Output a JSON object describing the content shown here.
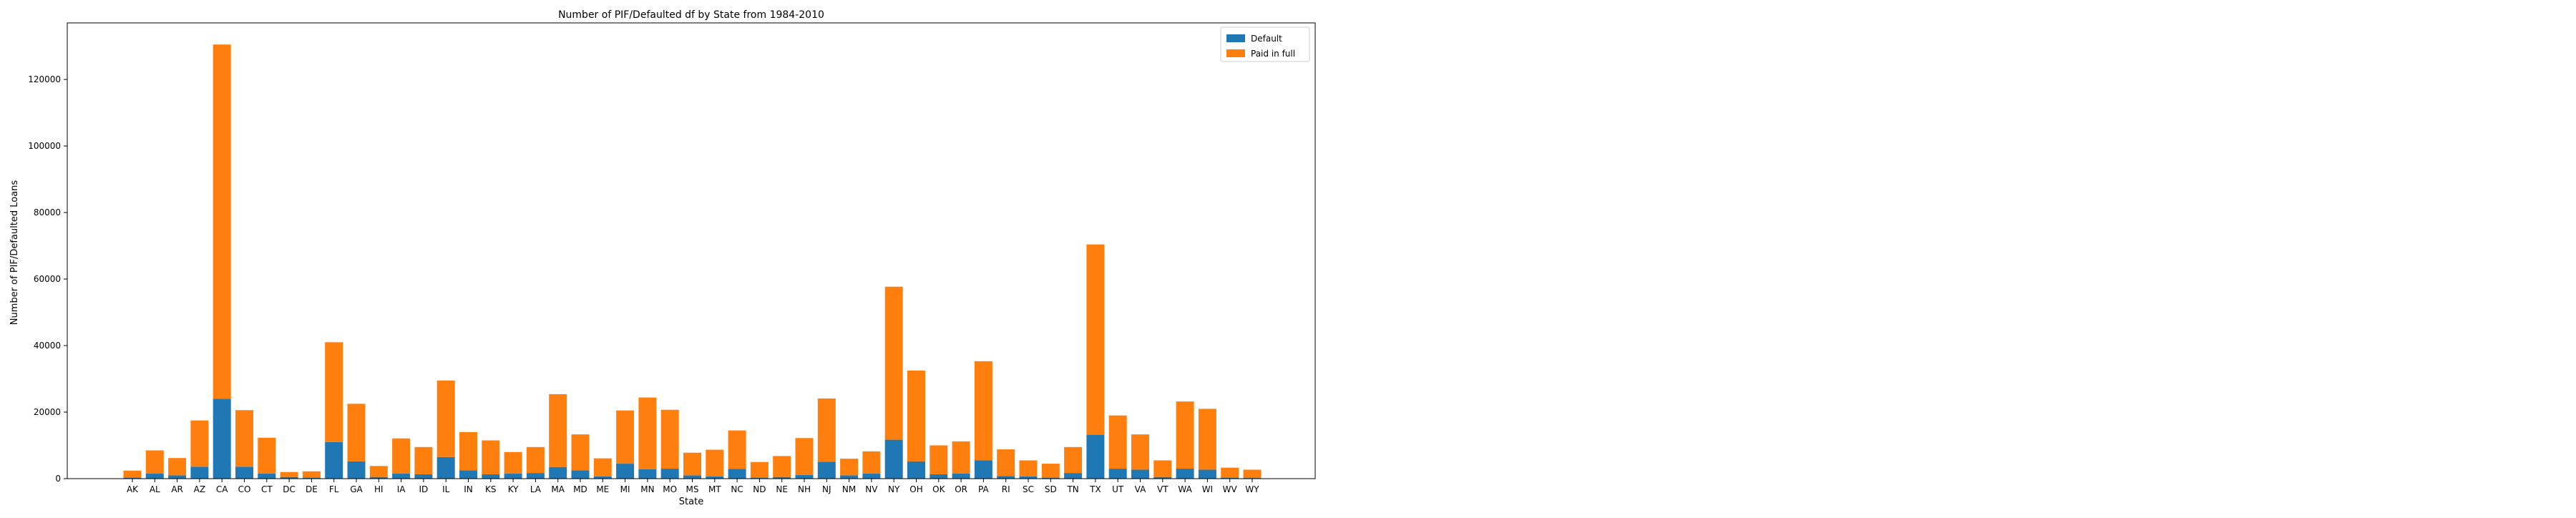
{
  "chart_data": {
    "type": "bar",
    "stacked": true,
    "title": "Number of PIF/Defaulted df by State from 1984-2010",
    "xlabel": "State",
    "ylabel": "Number of PIF/Defaulted Loans",
    "ylim": [
      0,
      137000
    ],
    "yticks": [
      0,
      20000,
      40000,
      60000,
      80000,
      100000,
      120000
    ],
    "grid": false,
    "legend_position": "top-right",
    "categories": [
      "AK",
      "AL",
      "AR",
      "AZ",
      "CA",
      "CO",
      "CT",
      "DC",
      "DE",
      "FL",
      "GA",
      "HI",
      "IA",
      "ID",
      "IL",
      "IN",
      "KS",
      "KY",
      "LA",
      "MA",
      "MD",
      "ME",
      "MI",
      "MN",
      "MO",
      "MS",
      "MT",
      "NC",
      "ND",
      "NE",
      "NH",
      "NJ",
      "NM",
      "NV",
      "NY",
      "OH",
      "OK",
      "OR",
      "PA",
      "RI",
      "SC",
      "SD",
      "TN",
      "TX",
      "UT",
      "VA",
      "VT",
      "WA",
      "WI",
      "WV",
      "WY"
    ],
    "series": [
      {
        "name": "Default",
        "color": "#1f77b4",
        "values": [
          300,
          1500,
          1000,
          3600,
          24000,
          3600,
          1500,
          500,
          300,
          11000,
          5200,
          500,
          1500,
          1300,
          6500,
          2500,
          1300,
          1500,
          1700,
          3500,
          2500,
          700,
          4500,
          2800,
          3000,
          1000,
          700,
          2900,
          300,
          500,
          1100,
          5100,
          1000,
          1500,
          11700,
          5200,
          1300,
          1500,
          5500,
          800,
          700,
          300,
          1700,
          13200,
          3000,
          2700,
          500,
          3000,
          2700,
          300,
          200
        ]
      },
      {
        "name": "Paid in full",
        "color": "#ff7f0e",
        "values": [
          2100,
          7000,
          5200,
          13900,
          106500,
          17000,
          10800,
          1500,
          1900,
          30000,
          17300,
          3300,
          10600,
          8200,
          23000,
          11500,
          10200,
          6500,
          7800,
          21900,
          10800,
          5400,
          16000,
          21600,
          17700,
          6800,
          8000,
          11600,
          4700,
          6300,
          11100,
          19000,
          5000,
          6700,
          46000,
          27300,
          8700,
          9700,
          29800,
          8000,
          4800,
          4200,
          7800,
          57200,
          16000,
          10600,
          5000,
          20200,
          18300,
          3000,
          2500
        ]
      }
    ]
  }
}
